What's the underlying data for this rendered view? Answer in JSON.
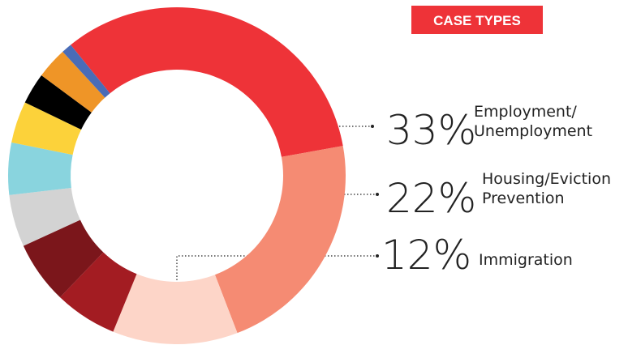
{
  "chart_data": {
    "type": "donut",
    "title": "CASE TYPES",
    "categories": [
      "Employment/\nUnemployment",
      "Housing/Eviction\nPrevention",
      "Immigration",
      null,
      null,
      null,
      null,
      null,
      null,
      null,
      null
    ],
    "values": [
      33,
      22,
      12,
      6,
      6,
      5,
      5,
      4,
      3,
      3,
      1
    ],
    "value_labels": [
      "33%",
      "22%",
      "12%",
      null,
      null,
      null,
      null,
      null,
      null,
      null,
      null
    ],
    "colors": [
      "#ee3338",
      "#f58b73",
      "#fdd5c8",
      "#a31c22",
      "#7b161b",
      "#d3d3d3",
      "#89d4de",
      "#fcd23a",
      "#000000",
      "#ef9527",
      "#4a6cb7"
    ]
  }
}
